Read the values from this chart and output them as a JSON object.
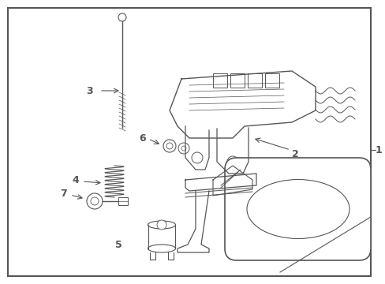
{
  "background_color": "#ffffff",
  "border_color": "#555555",
  "line_color": "#555555",
  "light_line": "#888888",
  "figsize": [
    4.89,
    3.6
  ],
  "dpi": 100
}
